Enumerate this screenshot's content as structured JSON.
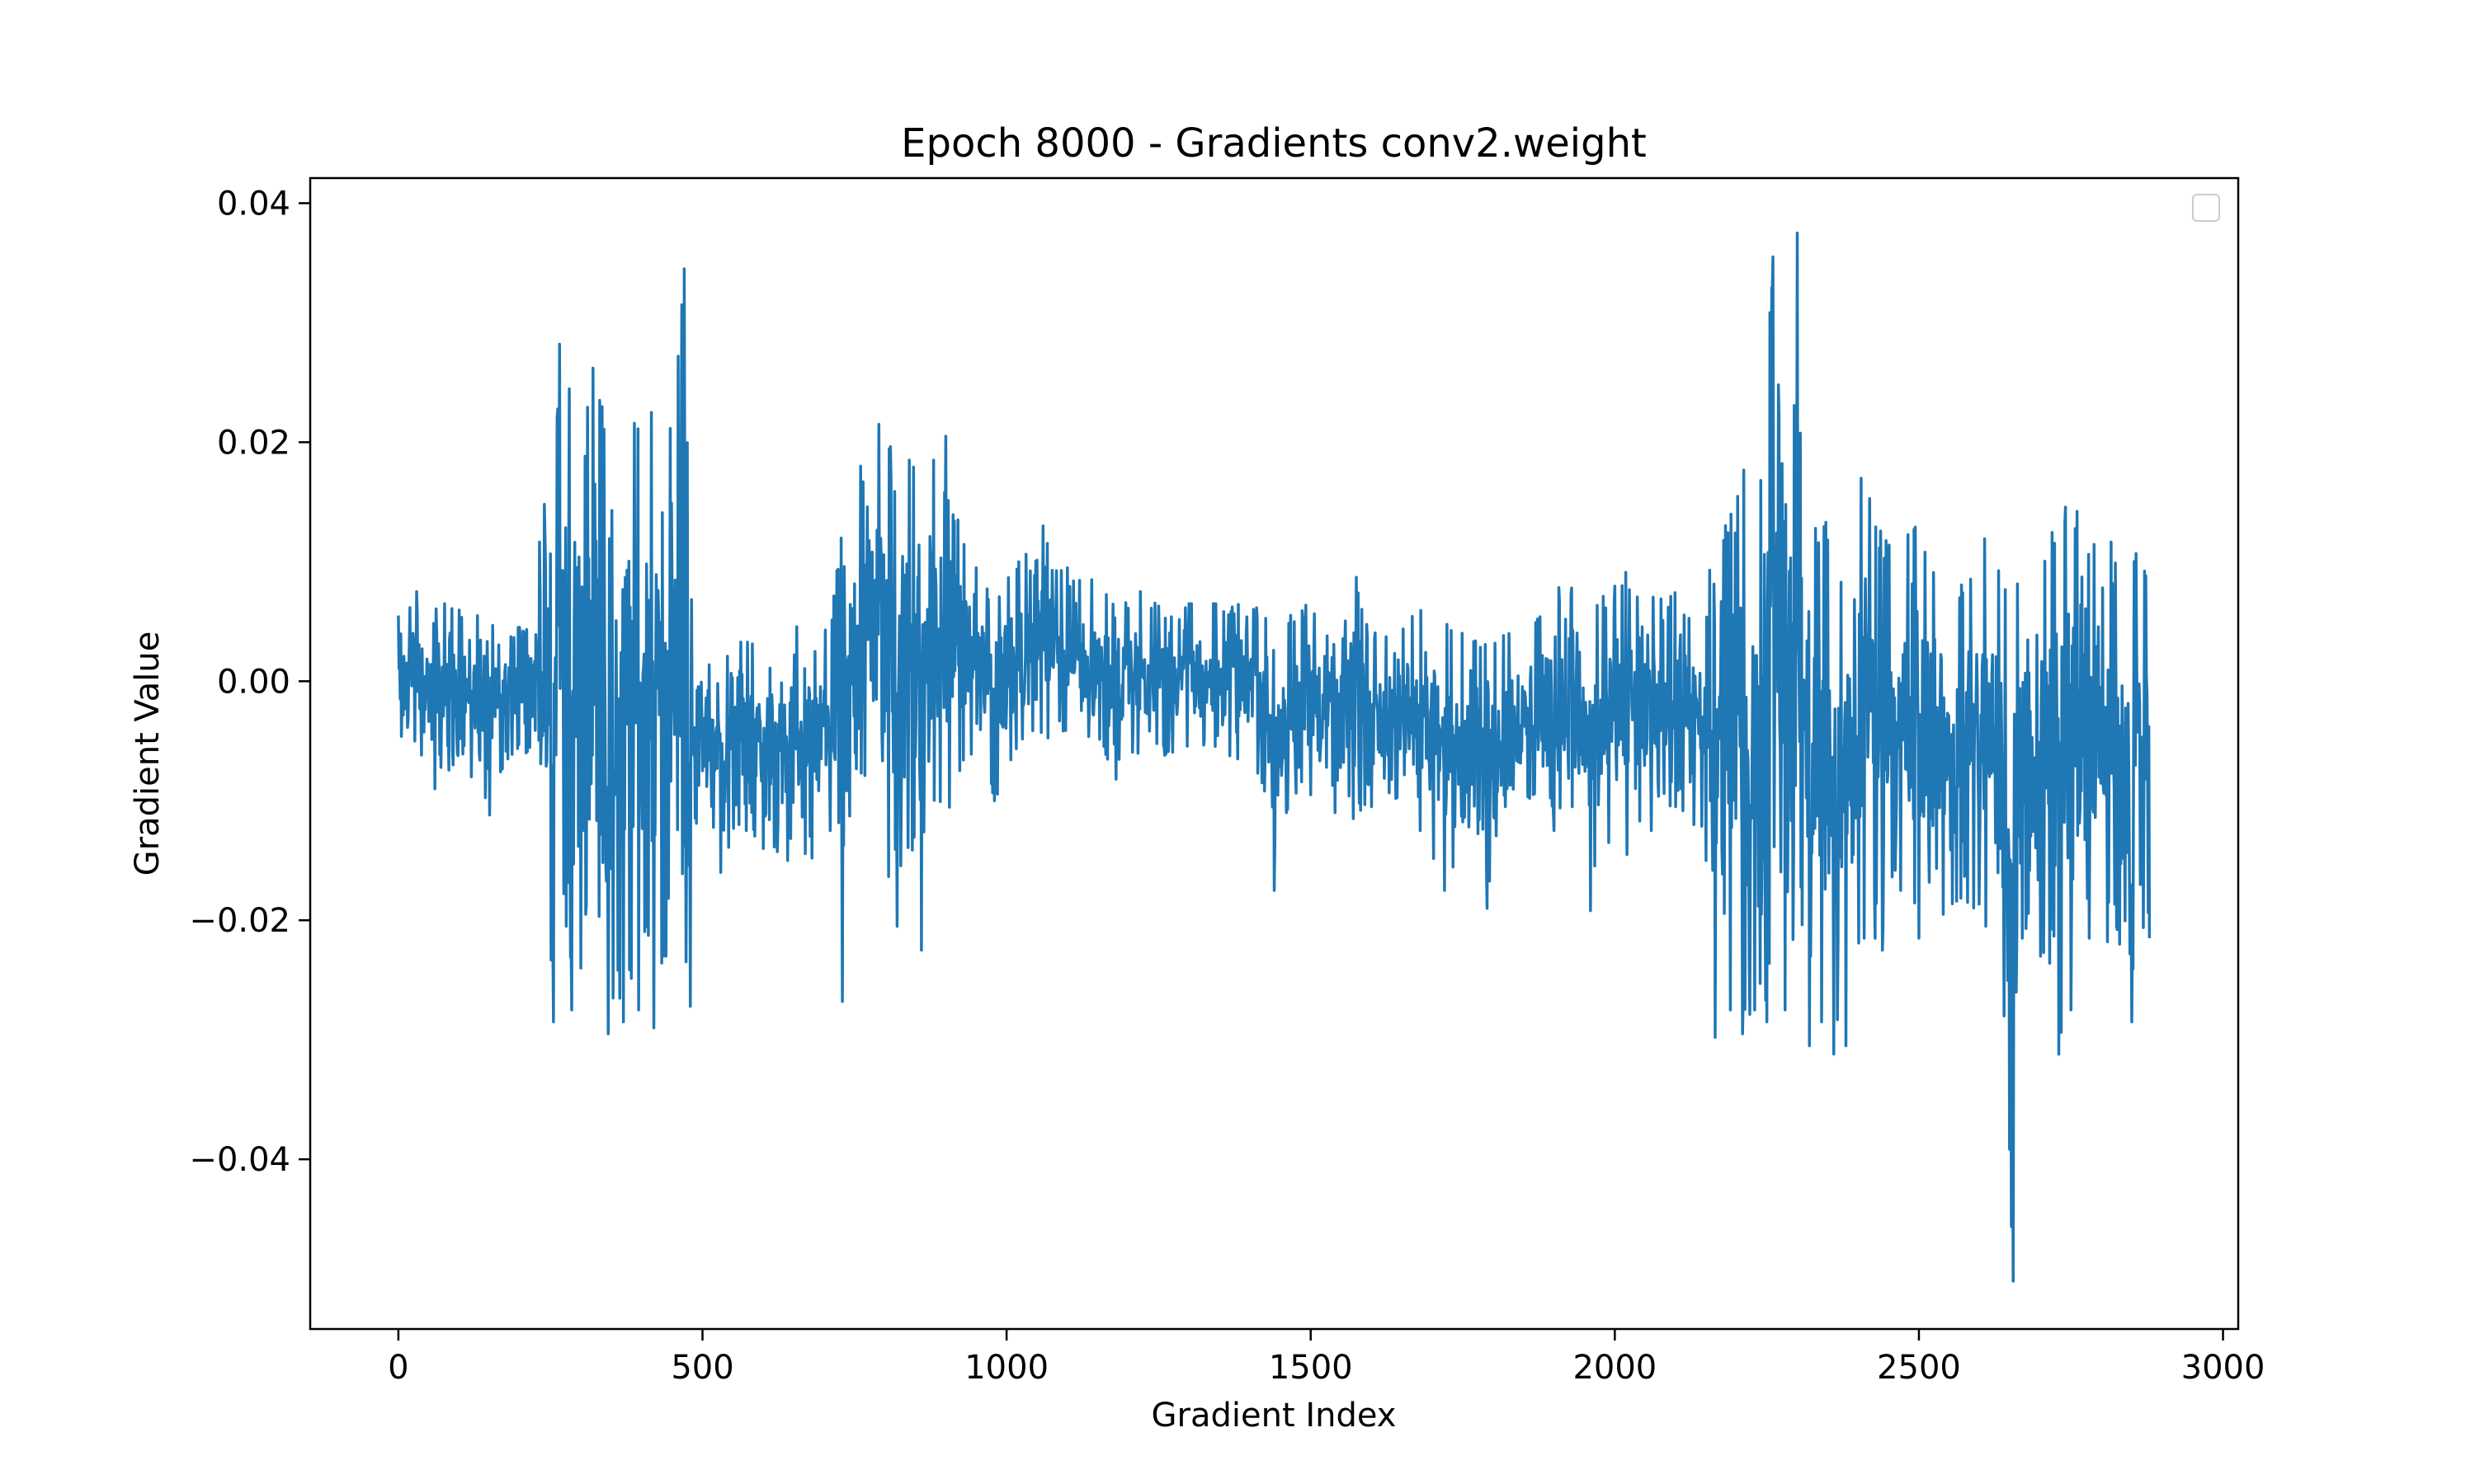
{
  "chart_data": {
    "type": "line",
    "title": "Epoch 8000 - Gradients conv2.weight",
    "xlabel": "Gradient Index",
    "ylabel": "Gradient Value",
    "xlim": [
      -145,
      3025
    ],
    "ylim": [
      -0.0542,
      0.0421
    ],
    "xticks": [
      0,
      500,
      1000,
      1500,
      2000,
      2500,
      3000
    ],
    "xtick_labels": [
      "0",
      "500",
      "1000",
      "1500",
      "2000",
      "2500",
      "3000"
    ],
    "yticks": [
      -0.04,
      -0.02,
      0.0,
      0.02,
      0.04
    ],
    "ytick_labels": [
      "−0.04",
      "−0.02",
      "0.00",
      "0.02",
      "0.04"
    ],
    "grid": false,
    "legend": {
      "placement": "top-right",
      "entries": []
    },
    "series": [
      {
        "color": "#1f77b4",
        "n_points": 2880,
        "envelope": [
          [
            0,
            0.0055,
            -0.005
          ],
          [
            30,
            0.0075,
            -0.006
          ],
          [
            60,
            0.0065,
            -0.009
          ],
          [
            90,
            0.0065,
            -0.007
          ],
          [
            120,
            0.006,
            -0.008
          ],
          [
            150,
            0.0068,
            -0.0112
          ],
          [
            180,
            0.004,
            -0.0065
          ],
          [
            210,
            0.005,
            -0.006
          ],
          [
            240,
            0.0148,
            -0.0125
          ],
          [
            255,
            0.0175,
            -0.0285
          ],
          [
            265,
            0.0282,
            -0.0165
          ],
          [
            285,
            0.024,
            -0.0275
          ],
          [
            300,
            0.0232,
            -0.024
          ],
          [
            320,
            0.0262,
            -0.021
          ],
          [
            345,
            0.0225,
            -0.0295
          ],
          [
            370,
            0.0285,
            -0.0285
          ],
          [
            395,
            0.0262,
            -0.0275
          ],
          [
            420,
            0.0232,
            -0.029
          ],
          [
            440,
            0.0215,
            -0.023
          ],
          [
            460,
            0.0272,
            -0.0215
          ],
          [
            470,
            0.0345,
            -0.0255
          ],
          [
            480,
            0.009,
            -0.0272
          ],
          [
            500,
            0.0025,
            -0.0075
          ],
          [
            530,
            0.0055,
            -0.016
          ],
          [
            560,
            0.0035,
            -0.012
          ],
          [
            600,
            0.005,
            -0.014
          ],
          [
            640,
            0.0042,
            -0.015
          ],
          [
            680,
            0.0055,
            -0.0148
          ],
          [
            710,
            0.0045,
            -0.0125
          ],
          [
            730,
            0.0145,
            -0.0268
          ],
          [
            760,
            0.018,
            -0.008
          ],
          [
            790,
            0.0215,
            -0.012
          ],
          [
            820,
            0.0195,
            -0.0205
          ],
          [
            840,
            0.0185,
            -0.0145
          ],
          [
            860,
            0.0175,
            -0.0225
          ],
          [
            880,
            0.0185,
            -0.011
          ],
          [
            900,
            0.0205,
            -0.0115
          ],
          [
            920,
            0.0135,
            -0.0085
          ],
          [
            950,
            0.0095,
            -0.0065
          ],
          [
            980,
            0.0075,
            -0.01
          ],
          [
            1020,
            0.01,
            -0.006
          ],
          [
            1060,
            0.013,
            -0.005
          ],
          [
            1100,
            0.0095,
            -0.005
          ],
          [
            1140,
            0.0085,
            -0.005
          ],
          [
            1180,
            0.0075,
            -0.0082
          ],
          [
            1220,
            0.0075,
            -0.0065
          ],
          [
            1260,
            0.0062,
            -0.0062
          ],
          [
            1300,
            0.0065,
            -0.0055
          ],
          [
            1340,
            0.0065,
            -0.0058
          ],
          [
            1380,
            0.0065,
            -0.0065
          ],
          [
            1420,
            0.0065,
            -0.0085
          ],
          [
            1440,
            0.0055,
            -0.0175
          ],
          [
            1460,
            0.0052,
            -0.011
          ],
          [
            1500,
            0.007,
            -0.0095
          ],
          [
            1540,
            0.0045,
            -0.011
          ],
          [
            1570,
            0.0098,
            -0.0115
          ],
          [
            1600,
            0.0042,
            -0.0105
          ],
          [
            1640,
            0.0035,
            -0.0098
          ],
          [
            1680,
            0.0065,
            -0.0125
          ],
          [
            1720,
            0.0055,
            -0.0175
          ],
          [
            1760,
            0.0042,
            -0.0122
          ],
          [
            1790,
            0.003,
            -0.019
          ],
          [
            1820,
            0.0042,
            -0.0105
          ],
          [
            1860,
            0.004,
            -0.0098
          ],
          [
            1900,
            0.0085,
            -0.0125
          ],
          [
            1930,
            0.008,
            -0.0105
          ],
          [
            1960,
            0.0065,
            -0.0192
          ],
          [
            1990,
            0.0075,
            -0.0135
          ],
          [
            2020,
            0.0095,
            -0.0145
          ],
          [
            2060,
            0.0075,
            -0.0125
          ],
          [
            2100,
            0.0078,
            -0.0105
          ],
          [
            2130,
            0.0045,
            -0.012
          ],
          [
            2150,
            0.0045,
            -0.015
          ],
          [
            2165,
            0.0178,
            -0.0298
          ],
          [
            2190,
            0.0145,
            -0.0275
          ],
          [
            2210,
            0.0215,
            -0.0295
          ],
          [
            2230,
            0.0128,
            -0.0275
          ],
          [
            2250,
            0.0265,
            -0.0285
          ],
          [
            2260,
            0.0355,
            -0.0215
          ],
          [
            2280,
            0.0145,
            -0.0275
          ],
          [
            2300,
            0.0375,
            -0.0295
          ],
          [
            2320,
            0.0135,
            -0.0305
          ],
          [
            2340,
            0.0145,
            -0.0285
          ],
          [
            2360,
            0.0112,
            -0.0312
          ],
          [
            2380,
            0.0135,
            -0.0305
          ],
          [
            2410,
            0.0205,
            -0.0215
          ],
          [
            2440,
            0.0125,
            -0.0225
          ],
          [
            2470,
            0.0115,
            -0.0175
          ],
          [
            2500,
            0.0135,
            -0.0215
          ],
          [
            2540,
            0.0085,
            -0.0195
          ],
          [
            2580,
            0.0085,
            -0.0185
          ],
          [
            2610,
            0.0125,
            -0.0205
          ],
          [
            2640,
            0.0085,
            -0.028
          ],
          [
            2655,
            0.0065,
            -0.0502
          ],
          [
            2670,
            0.0135,
            -0.0215
          ],
          [
            2700,
            0.0115,
            -0.023
          ],
          [
            2730,
            0.015,
            -0.0312
          ],
          [
            2750,
            0.0155,
            -0.0275
          ],
          [
            2780,
            0.012,
            -0.0215
          ],
          [
            2810,
            0.0115,
            -0.0218
          ],
          [
            2830,
            0.0125,
            -0.022
          ],
          [
            2850,
            0.0122,
            -0.0285
          ],
          [
            2879,
            0.01,
            -0.0215
          ]
        ]
      }
    ]
  }
}
